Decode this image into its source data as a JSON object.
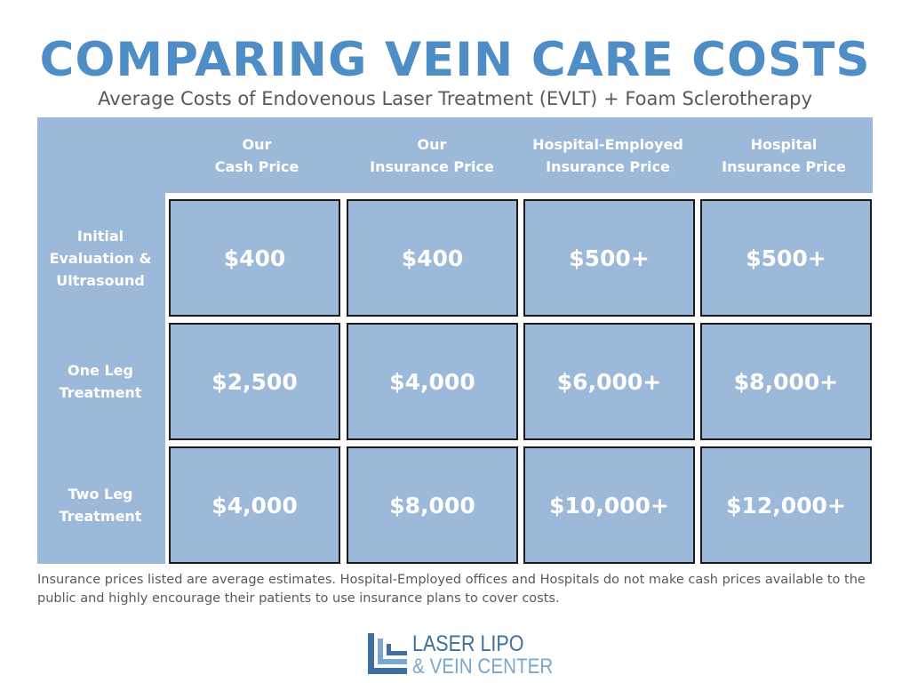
{
  "title": "COMPARING VEIN CARE COSTS",
  "subtitle": "Average Costs of Endovenous Laser Treatment (EVLT) + Foam Sclerotherapy",
  "columns": [
    "Our\nCash Price",
    "Our\nInsurance Price",
    "Hospital-Employed\nInsurance Price",
    "Hospital\nInsurance Price"
  ],
  "rows": [
    {
      "label": "Initial\nEvaluation &\nUltrasound",
      "values": [
        "$400",
        "$400",
        "$500+",
        "$500+"
      ]
    },
    {
      "label": "One Leg\nTreatment",
      "values": [
        "$2,500",
        "$4,000",
        "$6,000+",
        "$8,000+"
      ]
    },
    {
      "label": "Two Leg\nTreatment",
      "values": [
        "$4,000",
        "$8,000",
        "$10,000+",
        "$12,000+"
      ]
    }
  ],
  "footnote": "Insurance prices listed are average estimates. Hospital-Employed offices and Hospitals do not make cash prices available to the public and highly encourage their patients to use insurance plans to cover costs.",
  "logo": {
    "line1": "LASER LIPO",
    "line2": "& VEIN CENTER"
  },
  "colors": {
    "title": "#4f8dc6",
    "table": "#9db9d9",
    "text": "#555a60"
  }
}
